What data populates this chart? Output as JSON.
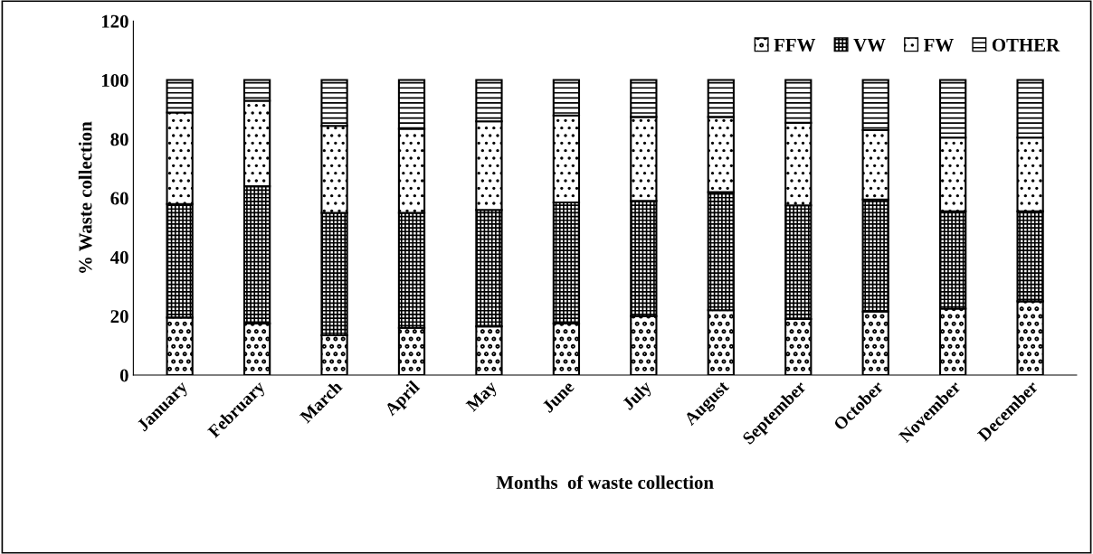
{
  "chart_data": {
    "type": "bar",
    "stacked": true,
    "xlabel": "Months  of waste collection",
    "ylabel": "% Waste collection",
    "categories": [
      "January",
      "February",
      "March",
      "April",
      "May",
      "June",
      "July",
      "August",
      "September",
      "October",
      "November",
      "December"
    ],
    "series": [
      {
        "name": "FFW",
        "color": "#000000",
        "values": [
          19.5,
          17.5,
          13.5,
          16,
          16.5,
          17.5,
          20,
          22,
          19,
          21.5,
          22.5,
          25
        ]
      },
      {
        "name": "VW",
        "color": "#000000",
        "values": [
          38.5,
          46.5,
          41.5,
          39,
          39.5,
          41,
          39,
          40,
          38.5,
          38,
          33,
          30.5
        ]
      },
      {
        "name": "FW",
        "color": "#000000",
        "values": [
          31,
          29,
          29.5,
          28.5,
          30,
          29.5,
          28.5,
          25.5,
          28,
          23.5,
          25,
          25
        ]
      },
      {
        "name": "OTHER",
        "color": "#000000",
        "values": [
          11,
          7,
          15.5,
          16.5,
          14,
          12,
          12.5,
          12.5,
          14.5,
          17,
          19.5,
          19.5
        ]
      }
    ],
    "ylim": [
      0,
      120
    ],
    "yticks": [
      0,
      20,
      40,
      60,
      80,
      100,
      120
    ],
    "grid": false,
    "legend": "top right"
  }
}
